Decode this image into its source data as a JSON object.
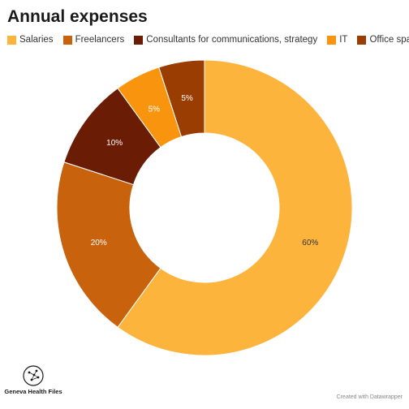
{
  "chart_data": {
    "type": "pie",
    "title": "Annual expenses",
    "categories": [
      "Salaries",
      "Freelancers",
      "Consultants for communications, strategy",
      "IT",
      "Office space"
    ],
    "values": [
      60,
      20,
      10,
      5,
      5
    ],
    "value_labels": [
      "60%",
      "20%",
      "10%",
      "5%",
      "5%"
    ],
    "colors": [
      "#FCB43C",
      "#C8620C",
      "#6B1C04",
      "#F9940F",
      "#993D02"
    ],
    "label_colors": [
      "#333333",
      "#ffffff",
      "#ffffff",
      "#ffffff",
      "#ffffff"
    ],
    "donut": true,
    "legend_position": "top-left"
  },
  "branding": {
    "logo_name": "Geneva Health Files",
    "credit": "Created with Datawrapper"
  }
}
